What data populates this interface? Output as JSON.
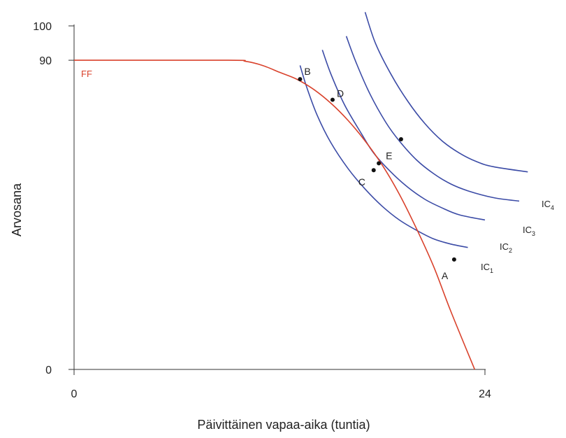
{
  "chart_data": {
    "type": "line",
    "xlabel": "Päivittäinen vapaa-aika (tuntia)",
    "ylabel": "Arvosana",
    "xlim": [
      0,
      24
    ],
    "ylim": [
      0,
      100
    ],
    "x_ticks": [
      "0",
      "24"
    ],
    "y_ticks": [
      "0",
      "90",
      "100"
    ],
    "colors": {
      "frontier": "#d9412b",
      "indifference": "#3b4ba6",
      "axis": "#333333"
    },
    "frontier": {
      "label": "FF",
      "points": [
        [
          0,
          90
        ],
        [
          9,
          90
        ],
        [
          10,
          89.7
        ],
        [
          11,
          88.5
        ],
        [
          12,
          86.5
        ],
        [
          13,
          84.5
        ],
        [
          14,
          81.5
        ],
        [
          15,
          77.5
        ],
        [
          16,
          72.5
        ],
        [
          17,
          66.5
        ],
        [
          18,
          59.5
        ],
        [
          19,
          51
        ],
        [
          20,
          41
        ],
        [
          21,
          30
        ],
        [
          22,
          17
        ],
        [
          23.4,
          0
        ]
      ]
    },
    "indifference_curves": [
      {
        "label_main": "IC",
        "label_sub": "1",
        "points": [
          [
            13.2,
            88.5
          ],
          [
            13.6,
            82
          ],
          [
            14.2,
            74
          ],
          [
            15,
            66
          ],
          [
            16,
            58.5
          ],
          [
            17,
            52.5
          ],
          [
            18,
            47.5
          ],
          [
            19,
            43.5
          ],
          [
            20,
            40.5
          ],
          [
            21,
            38
          ],
          [
            22,
            36.5
          ],
          [
            23,
            35.5
          ]
        ]
      },
      {
        "label_main": "IC",
        "label_sub": "2",
        "points": [
          [
            14.5,
            93
          ],
          [
            15,
            86
          ],
          [
            15.8,
            77
          ],
          [
            16.8,
            68.5
          ],
          [
            17.5,
            63
          ],
          [
            18.5,
            57.5
          ],
          [
            19.5,
            53
          ],
          [
            20.5,
            49.5
          ],
          [
            21.5,
            47
          ],
          [
            22.5,
            45
          ],
          [
            24,
            43.5
          ]
        ]
      },
      {
        "label_main": "IC",
        "label_sub": "3",
        "points": [
          [
            15.9,
            97
          ],
          [
            16.5,
            89
          ],
          [
            17.3,
            80
          ],
          [
            18.2,
            72
          ],
          [
            19,
            66.5
          ],
          [
            20,
            61
          ],
          [
            21,
            57
          ],
          [
            22,
            54
          ],
          [
            23,
            52
          ],
          [
            24.5,
            50
          ],
          [
            26,
            49
          ]
        ]
      },
      {
        "label_main": "IC",
        "label_sub": "4",
        "points": [
          [
            17,
            104
          ],
          [
            17.6,
            95
          ],
          [
            18.5,
            86
          ],
          [
            19.5,
            78
          ],
          [
            20.5,
            71.5
          ],
          [
            21.5,
            66.5
          ],
          [
            22.5,
            63
          ],
          [
            23.5,
            60.5
          ],
          [
            24.5,
            59
          ],
          [
            26.5,
            57.5
          ]
        ]
      }
    ],
    "points": [
      {
        "label": "A",
        "x": 22.2,
        "y": 32
      },
      {
        "label": "B",
        "x": 13.2,
        "y": 84.5
      },
      {
        "label": "C",
        "x": 17.5,
        "y": 58
      },
      {
        "label": "D",
        "x": 15.1,
        "y": 78.5
      },
      {
        "label": "E",
        "x": 17.8,
        "y": 60
      },
      {
        "label": "",
        "x": 19.1,
        "y": 67
      }
    ]
  }
}
